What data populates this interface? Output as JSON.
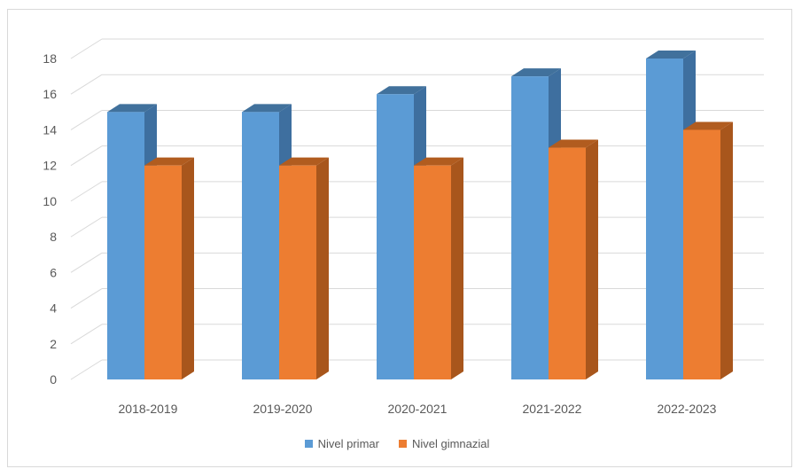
{
  "chart_data": {
    "type": "bar",
    "title": "",
    "xlabel": "",
    "ylabel": "",
    "ylim": [
      0,
      18
    ],
    "yticks": [
      0,
      2,
      4,
      6,
      8,
      10,
      12,
      14,
      16,
      18
    ],
    "grid": true,
    "legend_position": "bottom",
    "categories": [
      "2018-2019",
      "2019-2020",
      "2020-2021",
      "2021-2022",
      "2022-2023"
    ],
    "series": [
      {
        "name": "Nivel primar",
        "values": [
          15,
          15,
          16,
          17,
          18
        ],
        "color": "#5b9bd5",
        "side_color": "#3e6f9f",
        "top_color": "#41719c"
      },
      {
        "name": "Nivel gimnazial",
        "values": [
          12,
          12,
          12,
          13,
          14
        ],
        "color": "#ed7d31",
        "side_color": "#a8561c",
        "top_color": "#b15c1f"
      }
    ]
  }
}
